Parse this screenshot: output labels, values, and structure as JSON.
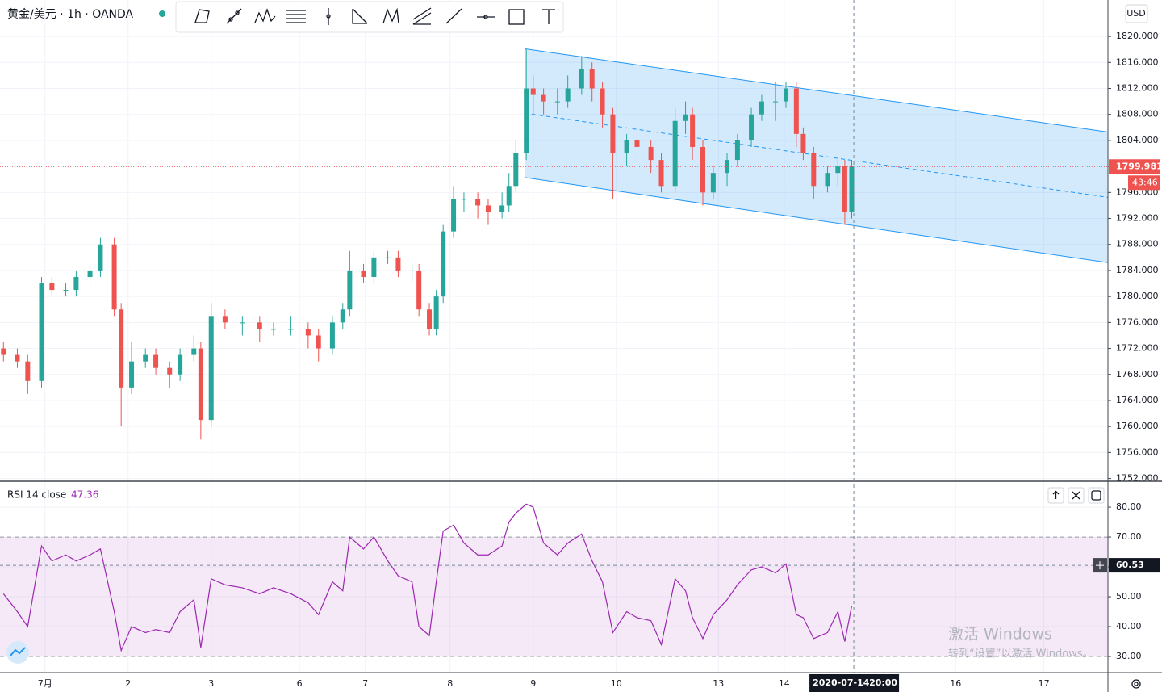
{
  "header": {
    "symbol": "黄金/美元 · 1h · OANDA",
    "currency": "USD"
  },
  "chart_data": [
    {
      "type": "candlestick",
      "up_color": "#26a69a",
      "down_color": "#ef5350",
      "x": [
        1,
        5,
        8,
        12,
        15,
        19,
        22,
        26,
        29,
        33,
        35,
        38,
        42,
        45,
        49,
        52,
        56,
        58,
        61,
        65,
        70,
        75,
        79,
        84,
        89,
        92,
        96,
        99,
        101,
        105,
        108,
        112,
        115,
        119,
        121,
        124,
        126,
        128,
        131,
        134,
        138,
        141,
        145,
        147,
        149,
        152,
        154,
        157,
        161,
        164,
        168,
        171,
        174,
        177,
        181,
        184,
        188,
        191,
        195,
        198,
        200,
        203,
        206,
        210,
        213,
        217,
        220,
        224,
        227,
        230,
        232,
        235,
        239,
        242,
        244,
        246
      ],
      "open": [
        1772,
        1771,
        1770,
        1767,
        1782,
        1781,
        1781,
        1783,
        1784,
        1788,
        1778,
        1766,
        1770,
        1771,
        1769,
        1768,
        1771,
        1772,
        1761,
        1777,
        1776,
        1776,
        1775,
        1775,
        1775,
        1774,
        1772,
        1776,
        1778,
        1784,
        1783,
        1786,
        1786,
        1784,
        1784,
        1778,
        1775,
        1780,
        1790,
        1795,
        1795,
        1794,
        1793,
        1794,
        1797,
        1802,
        1812,
        1811,
        1810,
        1810,
        1812,
        1815,
        1812,
        1808,
        1802,
        1804,
        1803,
        1801,
        1797,
        1807,
        1808,
        1803,
        1796,
        1799,
        1801,
        1804,
        1808,
        1810,
        1810,
        1812,
        1805,
        1802,
        1797,
        1799,
        1800,
        1793
      ],
      "high": [
        1773,
        1772,
        1771,
        1783,
        1783,
        1782,
        1784,
        1785,
        1789,
        1789,
        1779,
        1773,
        1772,
        1772,
        1770,
        1772,
        1774,
        1773,
        1779,
        1778,
        1777,
        1777,
        1776,
        1777,
        1776,
        1775,
        1777,
        1779,
        1787,
        1785,
        1787,
        1787,
        1787,
        1785,
        1785,
        1779,
        1781,
        1791,
        1797,
        1796,
        1796,
        1795,
        1796,
        1799,
        1804,
        1818,
        1814,
        1812,
        1812,
        1814,
        1817,
        1816,
        1813,
        1809,
        1805,
        1805,
        1804,
        1802,
        1809,
        1810,
        1809,
        1804,
        1800,
        1802,
        1805,
        1809,
        1811,
        1813,
        1813,
        1813,
        1806,
        1803,
        1800,
        1801,
        1801,
        1801
      ],
      "low": [
        1770,
        1769,
        1765,
        1766,
        1780,
        1780,
        1780,
        1782,
        1783,
        1777,
        1760,
        1765,
        1769,
        1768,
        1766,
        1767,
        1770,
        1758,
        1760,
        1775,
        1774,
        1773,
        1774,
        1774,
        1772,
        1770,
        1771,
        1775,
        1777,
        1782,
        1782,
        1785,
        1783,
        1782,
        1777,
        1774,
        1774,
        1779,
        1789,
        1793,
        1792,
        1791,
        1792,
        1793,
        1796,
        1801,
        1808,
        1808,
        1808,
        1809,
        1811,
        1810,
        1806,
        1795,
        1800,
        1801,
        1799,
        1796,
        1796,
        1805,
        1801,
        1794,
        1795,
        1797,
        1800,
        1803,
        1807,
        1807,
        1809,
        1803,
        1801,
        1795,
        1796,
        1797,
        1791,
        1792
      ],
      "close": [
        1771,
        1770,
        1767,
        1782,
        1781,
        1781,
        1783,
        1784,
        1788,
        1778,
        1766,
        1770,
        1771,
        1769,
        1768,
        1771,
        1772,
        1761,
        1777,
        1776,
        1776,
        1775,
        1775,
        1775,
        1774,
        1772,
        1776,
        1778,
        1784,
        1783,
        1786,
        1786,
        1784,
        1784,
        1778,
        1775,
        1780,
        1790,
        1795,
        1795,
        1794,
        1793,
        1794,
        1797,
        1802,
        1812,
        1811,
        1810,
        1810,
        1812,
        1815,
        1812,
        1808,
        1802,
        1804,
        1803,
        1801,
        1797,
        1807,
        1808,
        1803,
        1796,
        1799,
        1801,
        1804,
        1808,
        1810,
        1810,
        1812,
        1805,
        1802,
        1797,
        1799,
        1800,
        1793,
        1800
      ],
      "xlim": [
        0,
        320
      ],
      "ylim": [
        1751.7,
        1825.6
      ],
      "yticks": [
        {
          "value": 1752,
          "label": "1752.000"
        },
        {
          "value": 1756,
          "label": "1756.000"
        },
        {
          "value": 1760,
          "label": "1760.000"
        },
        {
          "value": 1764,
          "label": "1764.000"
        },
        {
          "value": 1768,
          "label": "1768.000"
        },
        {
          "value": 1772,
          "label": "1772.000"
        },
        {
          "value": 1776,
          "label": "1776.000"
        },
        {
          "value": 1780,
          "label": "1780.000"
        },
        {
          "value": 1784,
          "label": "1784.000"
        },
        {
          "value": 1788,
          "label": "1788.000"
        },
        {
          "value": 1792,
          "label": "1792.000"
        },
        {
          "value": 1796,
          "label": "1796.000"
        },
        {
          "value": 1800,
          "label": "1800.000"
        },
        {
          "value": 1804,
          "label": "1804.000"
        },
        {
          "value": 1808,
          "label": "1808.000"
        },
        {
          "value": 1812,
          "label": "1812.000"
        },
        {
          "value": 1816,
          "label": "1816.000"
        },
        {
          "value": 1820,
          "label": "1820.000"
        }
      ],
      "xticks": [
        {
          "value": 13,
          "label": "7月"
        },
        {
          "value": 37,
          "label": "2"
        },
        {
          "value": 61,
          "label": "3"
        },
        {
          "value": 86.5,
          "label": "6"
        },
        {
          "value": 105.5,
          "label": "7"
        },
        {
          "value": 130,
          "label": "8"
        },
        {
          "value": 154,
          "label": "9"
        },
        {
          "value": 178,
          "label": "10"
        },
        {
          "value": 207.5,
          "label": "13"
        },
        {
          "value": 226.5,
          "label": "14"
        },
        {
          "value": 276,
          "label": "16"
        },
        {
          "value": 301.5,
          "label": "17"
        }
      ],
      "grid": true,
      "channel": {
        "x": [
          151.5,
          320
        ],
        "upper": [
          1818.1,
          1805.3
        ],
        "lower": [
          1798.3,
          1785.2
        ],
        "color": "#2196f3"
      },
      "last_price": {
        "value": 1799.981,
        "countdown": "43:46",
        "color": "#ef5350"
      },
      "crosshair": {
        "x": 246.6,
        "date": "2020-07-14",
        "time": "20:00"
      }
    },
    {
      "type": "line",
      "title": "RSI 14 close",
      "current": 47.36,
      "color": "#9c27b0",
      "x": [
        1,
        5,
        8,
        12,
        15,
        19,
        22,
        26,
        29,
        33,
        35,
        38,
        42,
        45,
        49,
        52,
        56,
        58,
        61,
        65,
        70,
        75,
        79,
        84,
        89,
        92,
        96,
        99,
        101,
        105,
        108,
        112,
        115,
        119,
        121,
        124,
        126,
        128,
        131,
        134,
        138,
        141,
        145,
        147,
        149,
        152,
        154,
        157,
        161,
        164,
        168,
        171,
        174,
        177,
        181,
        184,
        188,
        191,
        195,
        198,
        200,
        203,
        206,
        210,
        213,
        217,
        220,
        224,
        227,
        230,
        232,
        235,
        239,
        242,
        244,
        246
      ],
      "values": [
        51,
        45,
        40,
        67,
        62,
        64,
        62,
        64,
        66,
        45,
        32,
        40,
        38,
        39,
        38,
        45,
        49,
        33,
        56,
        54,
        53,
        51,
        53,
        51,
        48,
        44,
        55,
        52,
        70,
        66,
        70,
        62,
        57,
        55,
        40,
        37,
        55,
        72,
        74,
        68,
        64,
        64,
        67,
        75,
        78,
        81,
        80,
        68,
        64,
        68,
        71,
        62,
        55,
        38,
        45,
        43,
        42,
        34,
        56,
        52,
        43,
        36,
        44,
        49,
        54,
        59,
        60,
        58,
        61,
        44,
        43,
        36,
        38,
        45,
        35,
        47
      ],
      "xlim": [
        0,
        320
      ],
      "ylim": [
        24.6,
        88.4
      ],
      "yticks": [
        {
          "value": 30,
          "label": "30.00"
        },
        {
          "value": 40,
          "label": "40.00"
        },
        {
          "value": 50,
          "label": "50.00"
        },
        {
          "value": 60,
          "label": "60.00"
        },
        {
          "value": 70,
          "label": "70.00"
        },
        {
          "value": 80,
          "label": "80.00"
        }
      ],
      "band": [
        30,
        70
      ],
      "crosshair_value": 60.53
    }
  ],
  "watermark": {
    "line1": "激活 Windows",
    "line2": "转到“设置”以激活 Windows。"
  }
}
